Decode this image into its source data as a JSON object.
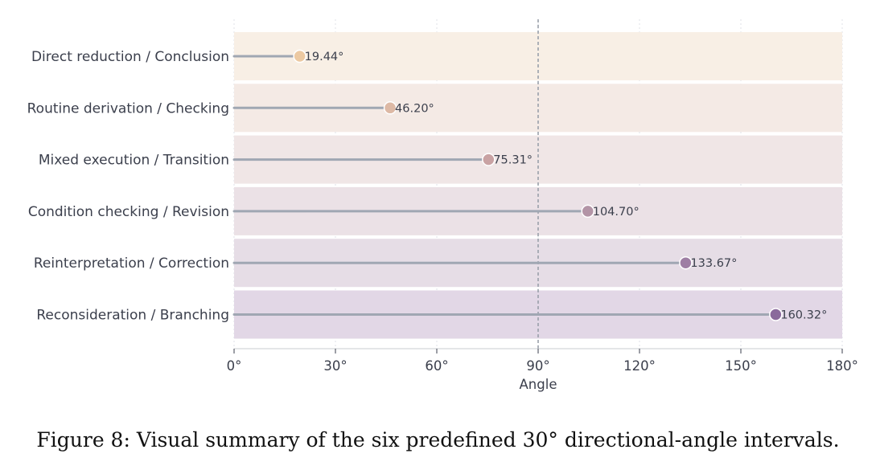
{
  "caption": "Figure 8: Visual summary of the six predefined 30° directional-angle intervals.",
  "chart_data": {
    "type": "lollipop",
    "orientation": "horizontal",
    "categories": [
      "Direct reduction / Conclusion",
      "Routine derivation / Checking",
      "Mixed execution / Transition",
      "Condition checking / Revision",
      "Reinterpretation / Correction",
      "Reconsideration / Branching"
    ],
    "values": [
      19.44,
      46.2,
      75.31,
      104.7,
      133.67,
      160.32
    ],
    "value_labels": [
      "19.44°",
      "46.20°",
      "75.31°",
      "104.70°",
      "133.67°",
      "160.32°"
    ],
    "xlabel": "Angle",
    "xlim": [
      0,
      180
    ],
    "xticks": [
      0,
      30,
      60,
      90,
      120,
      150,
      180
    ],
    "xtick_labels": [
      "0°",
      "30°",
      "60°",
      "90°",
      "120°",
      "150°",
      "180°"
    ],
    "reference_line": 90,
    "band_colors": [
      "#f8efe5",
      "#f4eae5",
      "#f0e6e6",
      "#ebe1e6",
      "#e6dde6",
      "#e2d7e6"
    ],
    "marker_colors": [
      "#ecc9a2",
      "#ddb9a5",
      "#c9a2a3",
      "#b394a6",
      "#9e7ea4",
      "#8a6a9c"
    ],
    "stem_color": "#a0a7b3",
    "grid": true,
    "legend": "none"
  }
}
